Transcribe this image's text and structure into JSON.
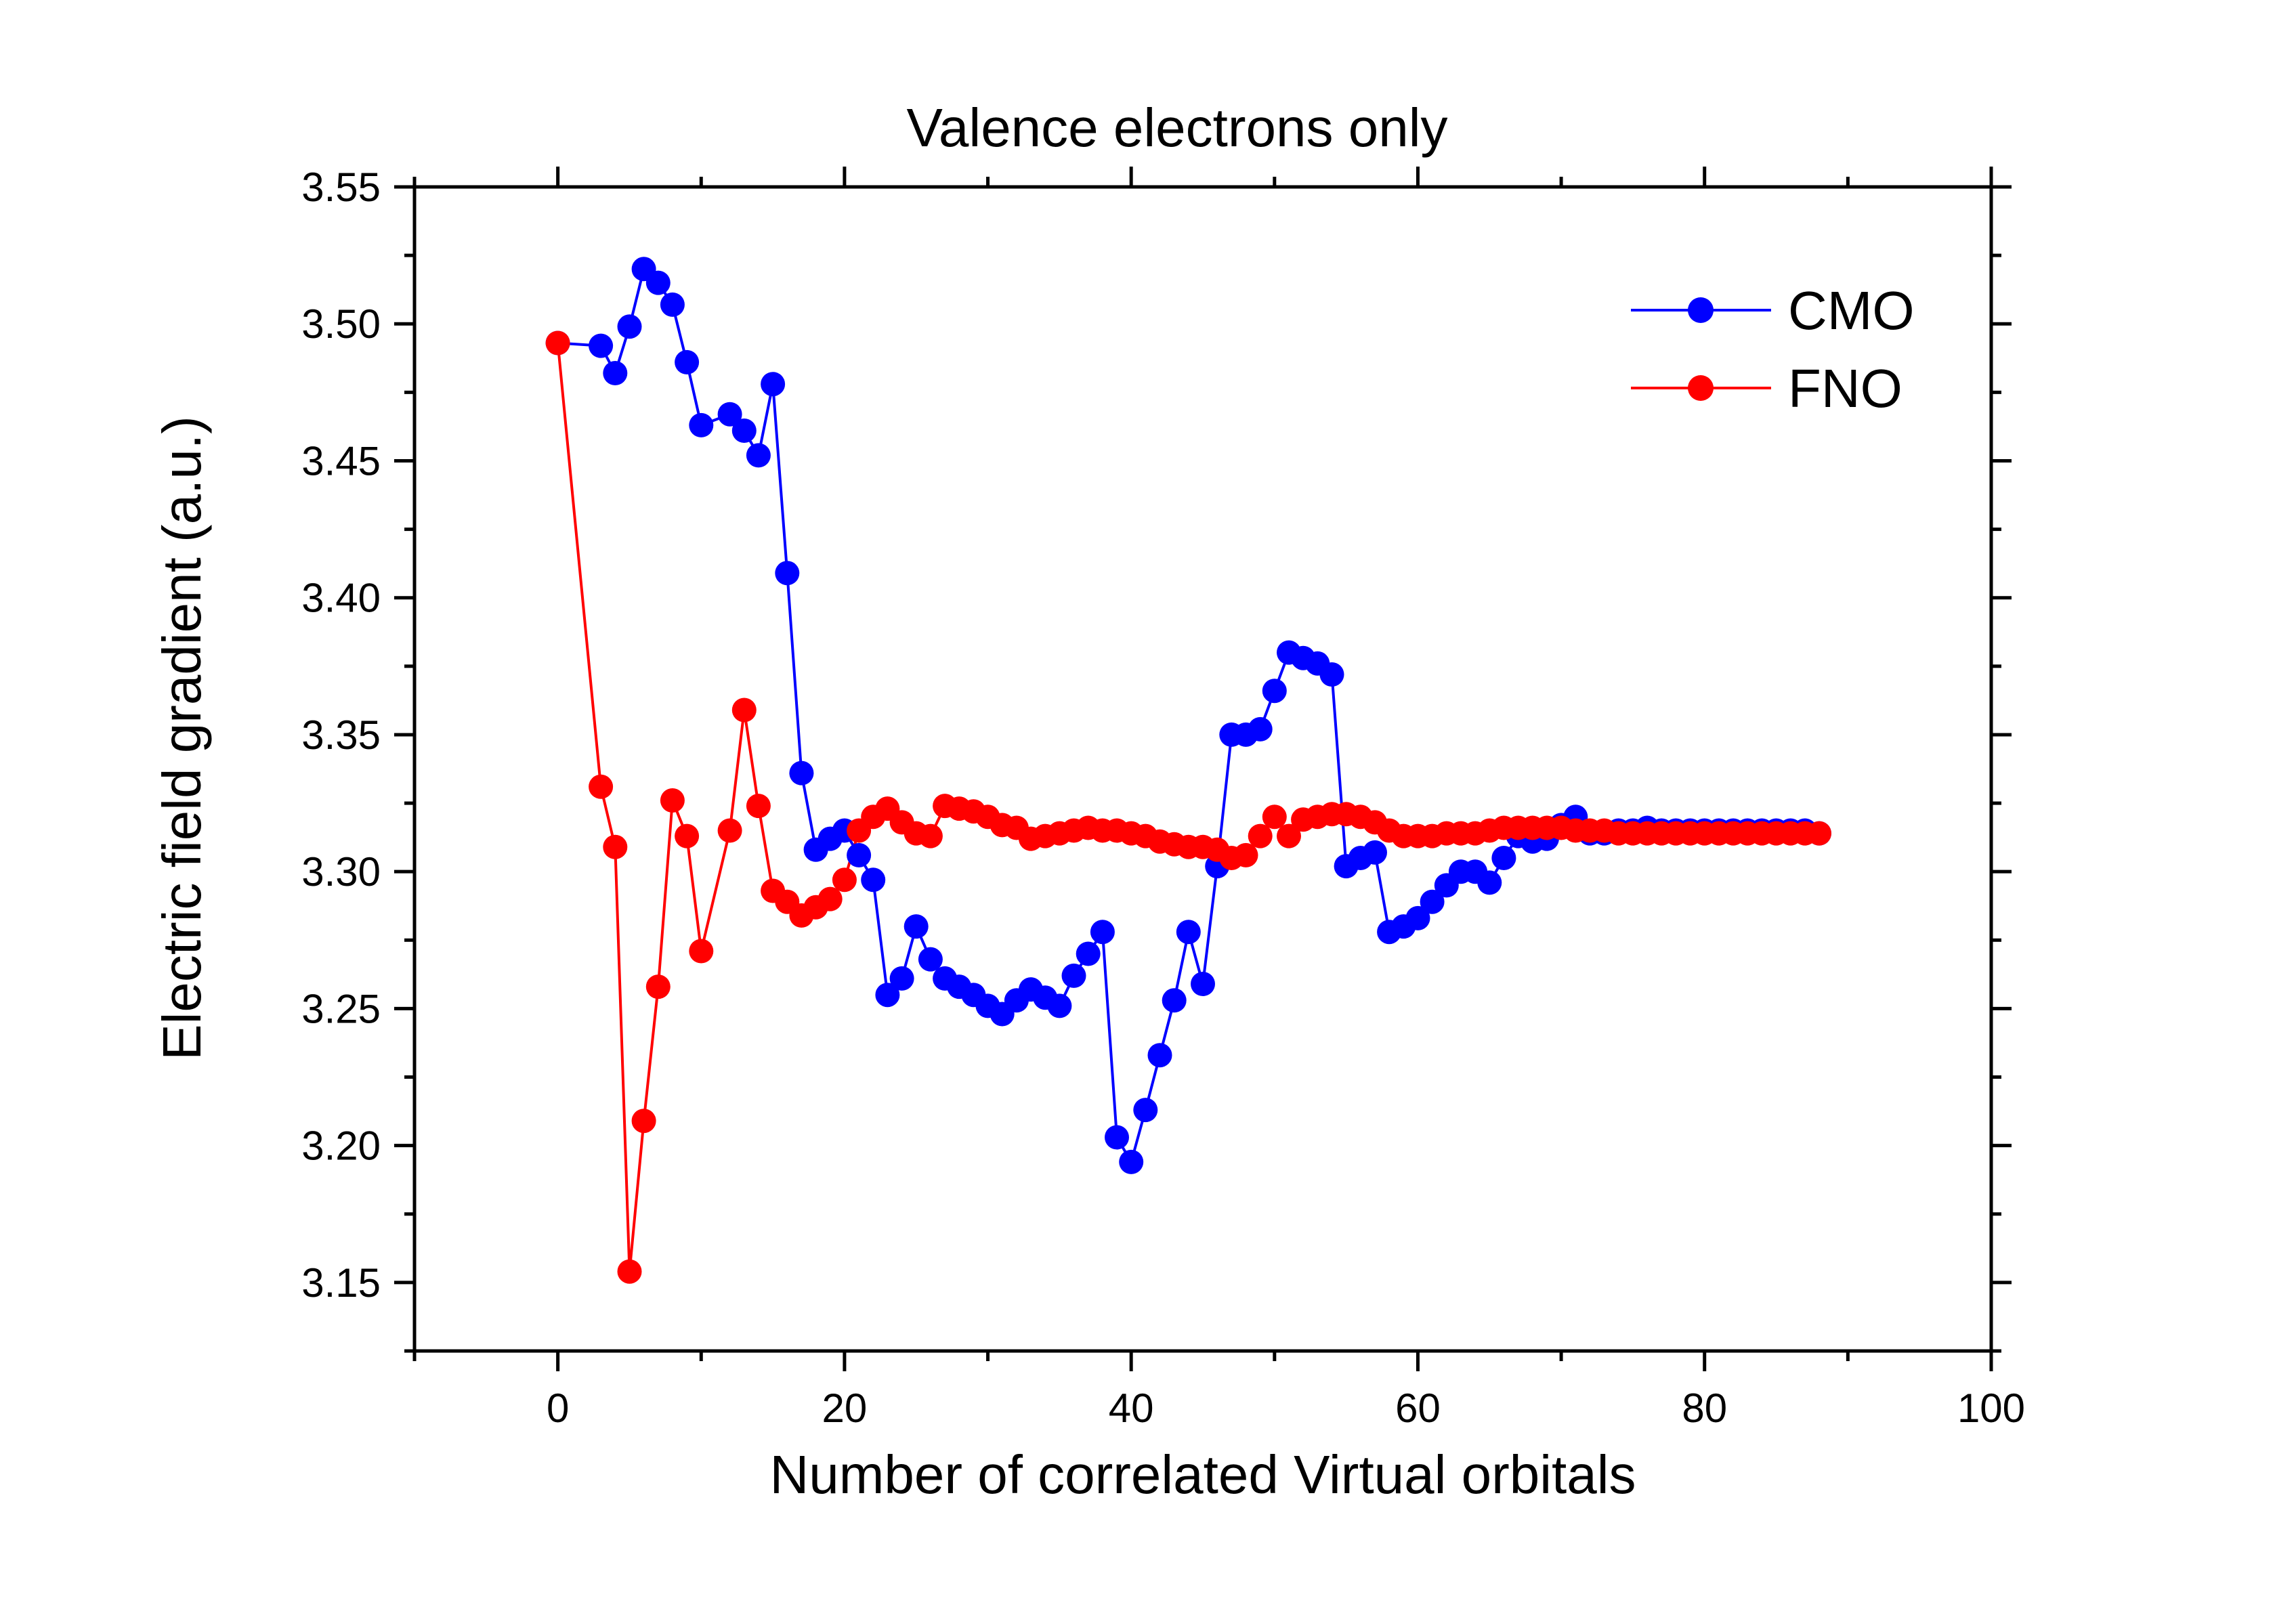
{
  "chart_data": {
    "type": "line",
    "title": "Valence electrons only",
    "xlabel": "Number of correlated Virtual orbitals",
    "ylabel": "Electric field gradient (a.u.)",
    "xlim": [
      -10,
      100
    ],
    "ylim": [
      3.125,
      3.55
    ],
    "x_ticks": [
      0,
      20,
      40,
      60,
      80,
      100
    ],
    "x_tick_labels": [
      "0",
      "20",
      "40",
      "60",
      "80",
      "100"
    ],
    "y_ticks": [
      3.15,
      3.2,
      3.25,
      3.3,
      3.35,
      3.4,
      3.45,
      3.5,
      3.55
    ],
    "y_tick_labels": [
      "3.15",
      "3.20",
      "3.25",
      "3.30",
      "3.35",
      "3.40",
      "3.45",
      "3.50",
      "3.55"
    ],
    "legend_position": "top-right",
    "series": [
      {
        "name": "CMO",
        "color": "#0000ff",
        "x": [
          0,
          3,
          4,
          5,
          6,
          7,
          8,
          9,
          10,
          12,
          13,
          14,
          15,
          16,
          17,
          18,
          19,
          20,
          21,
          22,
          23,
          24,
          25,
          26,
          27,
          28,
          29,
          30,
          31,
          32,
          33,
          34,
          35,
          36,
          37,
          38,
          39,
          40,
          41,
          42,
          43,
          44,
          45,
          46,
          47,
          48,
          49,
          50,
          51,
          52,
          53,
          54,
          55,
          56,
          57,
          58,
          59,
          60,
          61,
          62,
          63,
          64,
          65,
          66,
          67,
          68,
          69,
          70,
          71,
          72,
          73,
          74,
          75,
          76,
          77,
          78,
          79,
          80,
          81,
          82,
          83,
          84,
          85,
          86,
          87,
          88
        ],
        "y": [
          3.493,
          3.492,
          3.482,
          3.499,
          3.52,
          3.515,
          3.507,
          3.486,
          3.463,
          3.467,
          3.461,
          3.452,
          3.478,
          3.409,
          3.336,
          3.308,
          3.312,
          3.315,
          3.306,
          3.297,
          3.255,
          3.261,
          3.28,
          3.268,
          3.261,
          3.258,
          3.255,
          3.251,
          3.248,
          3.253,
          3.257,
          3.254,
          3.251,
          3.262,
          3.27,
          3.278,
          3.203,
          3.194,
          3.213,
          3.233,
          3.253,
          3.278,
          3.259,
          3.302,
          3.35,
          3.35,
          3.352,
          3.366,
          3.38,
          3.378,
          3.376,
          3.372,
          3.302,
          3.305,
          3.307,
          3.278,
          3.28,
          3.283,
          3.289,
          3.295,
          3.3,
          3.3,
          3.296,
          3.305,
          3.313,
          3.311,
          3.312,
          3.317,
          3.32,
          3.314,
          3.314,
          3.315,
          3.315,
          3.316,
          3.315,
          3.315,
          3.315,
          3.315,
          3.315,
          3.315,
          3.315,
          3.315,
          3.315,
          3.315,
          3.315,
          3.314
        ]
      },
      {
        "name": "FNO",
        "color": "#ff0000",
        "x": [
          0,
          3,
          4,
          5,
          6,
          7,
          8,
          9,
          10,
          12,
          13,
          14,
          15,
          16,
          17,
          18,
          19,
          20,
          21,
          22,
          23,
          24,
          25,
          26,
          27,
          28,
          29,
          30,
          31,
          32,
          33,
          34,
          35,
          36,
          37,
          38,
          39,
          40,
          41,
          42,
          43,
          44,
          45,
          46,
          47,
          48,
          49,
          50,
          51,
          52,
          53,
          54,
          55,
          56,
          57,
          58,
          59,
          60,
          61,
          62,
          63,
          64,
          65,
          66,
          67,
          68,
          69,
          70,
          71,
          72,
          73,
          74,
          75,
          76,
          77,
          78,
          79,
          80,
          81,
          82,
          83,
          84,
          85,
          86,
          87,
          88
        ],
        "y": [
          3.493,
          3.331,
          3.309,
          3.154,
          3.209,
          3.258,
          3.326,
          3.313,
          3.271,
          3.315,
          3.359,
          3.324,
          3.293,
          3.289,
          3.284,
          3.287,
          3.29,
          3.297,
          3.315,
          3.32,
          3.323,
          3.318,
          3.314,
          3.313,
          3.324,
          3.323,
          3.322,
          3.32,
          3.317,
          3.316,
          3.312,
          3.313,
          3.314,
          3.315,
          3.316,
          3.315,
          3.315,
          3.314,
          3.313,
          3.311,
          3.31,
          3.309,
          3.309,
          3.308,
          3.305,
          3.306,
          3.313,
          3.32,
          3.313,
          3.319,
          3.32,
          3.321,
          3.321,
          3.32,
          3.318,
          3.315,
          3.313,
          3.313,
          3.313,
          3.314,
          3.314,
          3.314,
          3.315,
          3.316,
          3.316,
          3.316,
          3.316,
          3.316,
          3.315,
          3.315,
          3.315,
          3.314,
          3.314,
          3.314,
          3.314,
          3.314,
          3.314,
          3.314,
          3.314,
          3.314,
          3.314,
          3.314,
          3.314,
          3.314,
          3.314,
          3.314
        ]
      }
    ]
  }
}
